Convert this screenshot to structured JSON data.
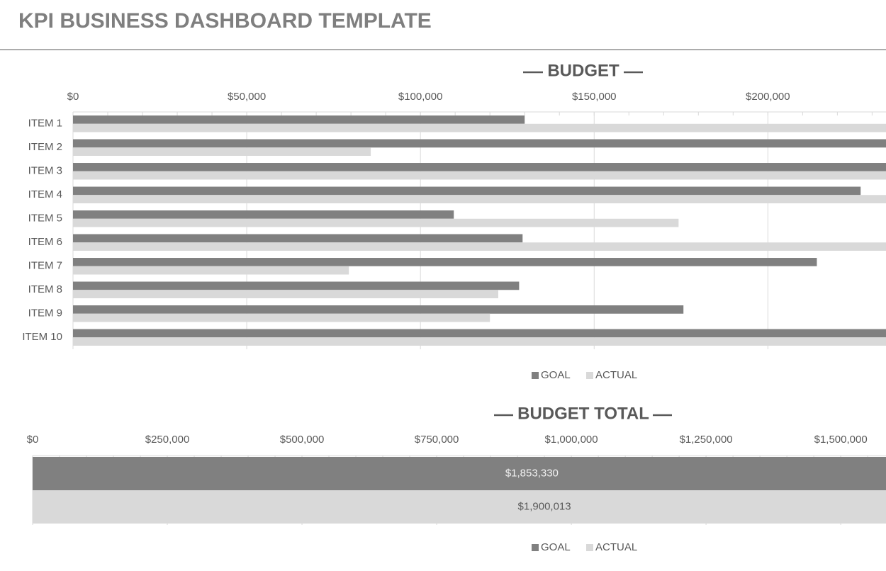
{
  "title": "KPI BUSINESS DASHBOARD TEMPLATE",
  "chart_data": [
    {
      "type": "hbar",
      "title": "BUDGET",
      "categories": [
        "ITEM 1",
        "ITEM 2",
        "ITEM 3",
        "ITEM 4",
        "ITEM 5",
        "ITEM 6",
        "ITEM 7",
        "ITEM 8",
        "ITEM 9",
        "ITEM 10"
      ],
      "series": [
        {
          "name": "GOAL",
          "color": "#808080",
          "values": [
            130000,
            240000,
            240000,
            226700,
            109600,
            129400,
            214100,
            128400,
            175700,
            240000
          ]
        },
        {
          "name": "ACTUAL",
          "color": "#d9d9d9",
          "values": [
            240000,
            85700,
            240000,
            240000,
            174300,
            240000,
            79400,
            122400,
            120000,
            240000
          ]
        }
      ],
      "xlim": [
        0,
        234000
      ],
      "xticks": [
        {
          "value": 0,
          "label": "$0"
        },
        {
          "value": 50000,
          "label": "$50,000"
        },
        {
          "value": 100000,
          "label": "$100,000"
        },
        {
          "value": 150000,
          "label": "$150,000"
        },
        {
          "value": 200000,
          "label": "$200,000"
        }
      ],
      "grid": true,
      "legend": "bottom"
    },
    {
      "type": "hbar",
      "title": "BUDGET TOTAL",
      "categories": [
        null
      ],
      "series": [
        {
          "name": "GOAL",
          "color": "#808080",
          "values": [
            1853330
          ],
          "value_labels": [
            "$1,853,330"
          ]
        },
        {
          "name": "ACTUAL",
          "color": "#d9d9d9",
          "values": [
            1900013
          ],
          "value_labels": [
            "$1,900,013"
          ]
        }
      ],
      "xlim": [
        0,
        1584000
      ],
      "xticks": [
        {
          "value": 0,
          "label": "$0"
        },
        {
          "value": 250000,
          "label": "$250,000"
        },
        {
          "value": 500000,
          "label": "$500,000"
        },
        {
          "value": 750000,
          "label": "$750,000"
        },
        {
          "value": 1000000,
          "label": "$1,000,000"
        },
        {
          "value": 1250000,
          "label": "$1,250,000"
        },
        {
          "value": 1500000,
          "label": "$1,500,000"
        }
      ],
      "grid": true,
      "legend": "bottom"
    }
  ]
}
